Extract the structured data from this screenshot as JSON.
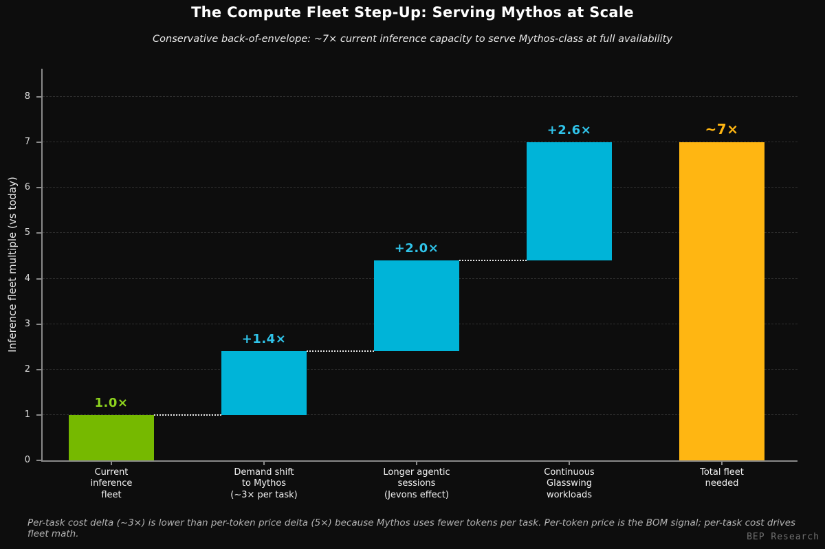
{
  "header": {
    "title": "The Compute Fleet Step-Up: Serving Mythos at Scale",
    "subtitle": "Conservative back-of-envelope: ~7× current inference capacity to serve Mythos-class at full availability"
  },
  "chart_data": {
    "type": "bar",
    "variant": "waterfall",
    "title": "The Compute Fleet Step-Up: Serving Mythos at Scale",
    "xlabel": "",
    "ylabel": "Inference fleet multiple (vs today)",
    "ylim": [
      0,
      8.62
    ],
    "yticks": [
      0,
      1,
      2,
      3,
      4,
      5,
      6,
      7,
      8
    ],
    "grid": "horizontal-dashed",
    "legend": "none",
    "categories": [
      "Current\ninference\nfleet",
      "Demand shift\nto Mythos\n(~3× per task)",
      "Longer agentic\nsessions\n(Jevons effect)",
      "Continuous\nGlasswing\nworkloads",
      "Total fleet\nneeded"
    ],
    "segments": [
      {
        "label": "1.0×",
        "start": 0.0,
        "end": 1.0,
        "color": "#76b900",
        "label_color": "#8ed41e",
        "connector": false,
        "emphasis": false
      },
      {
        "label": "+1.4×",
        "start": 1.0,
        "end": 2.4,
        "color": "#00b4d8",
        "label_color": "#30c4ea",
        "connector": true,
        "emphasis": false
      },
      {
        "label": "+2.0×",
        "start": 2.4,
        "end": 4.4,
        "color": "#00b4d8",
        "label_color": "#30c4ea",
        "connector": true,
        "emphasis": false
      },
      {
        "label": "+2.6×",
        "start": 4.4,
        "end": 7.0,
        "color": "#00b4d8",
        "label_color": "#30c4ea",
        "connector": true,
        "emphasis": false
      },
      {
        "label": "~7×",
        "start": 0.0,
        "end": 7.0,
        "color": "#ffb612",
        "label_color": "#ffb612",
        "connector": false,
        "emphasis": true
      }
    ]
  },
  "footer": {
    "note": "Per-task cost delta (~3×) is lower than per-token price delta (5×) because Mythos uses fewer tokens per task. Per-token price is the BOM signal; per-task cost drives fleet math.",
    "watermark": "BEP Research"
  },
  "colors": {
    "background": "#0d0d0d",
    "green": "#76b900",
    "cyan": "#00b4d8",
    "orange": "#ffb612",
    "spine": "#8a8a8a",
    "gridline": "rgba(255,255,255,0.14)",
    "connector": "rgba(255,255,255,0.9)"
  }
}
